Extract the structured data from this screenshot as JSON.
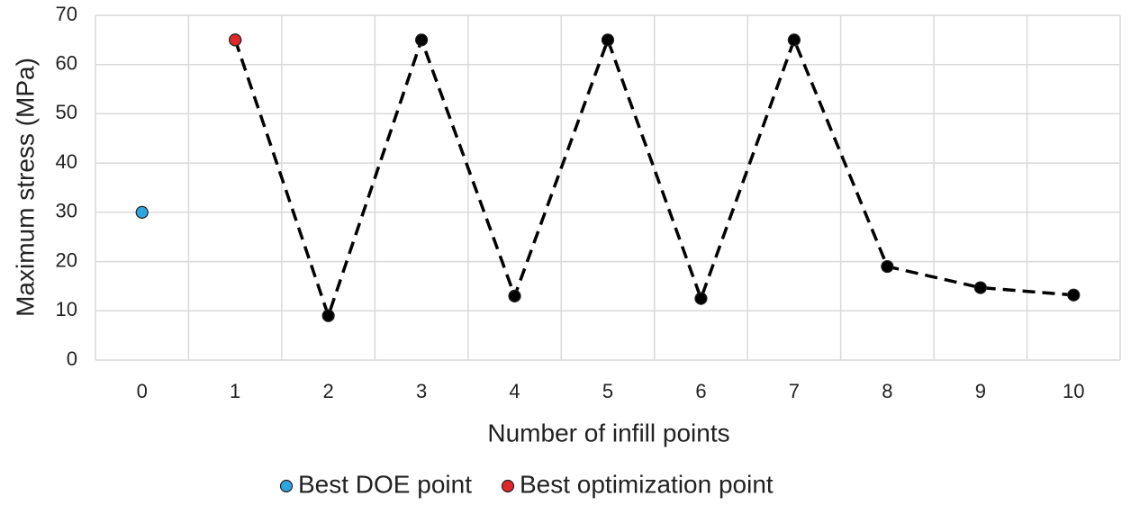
{
  "chart_data": {
    "type": "line",
    "x_label": "Number of infill points",
    "y_label": "Maximum stress (MPa)",
    "categories": [
      "0",
      "1",
      "2",
      "3",
      "4",
      "5",
      "6",
      "7",
      "8",
      "9",
      "10"
    ],
    "ylim": [
      0,
      70
    ],
    "yticks": [
      0,
      10,
      20,
      30,
      40,
      50,
      60,
      70
    ],
    "grid": true,
    "series": [
      {
        "name": "Best DOE point",
        "color": "#2ea7e0",
        "values": [
          30,
          null,
          null,
          null,
          null,
          null,
          null,
          null,
          null,
          null,
          null
        ]
      },
      {
        "name": "Best optimization point",
        "color": "#e0282a",
        "values": [
          null,
          65,
          null,
          null,
          null,
          null,
          null,
          null,
          null,
          null,
          null
        ]
      },
      {
        "color": "#000000",
        "dashed": true,
        "values": [
          null,
          65,
          9,
          65,
          13,
          65,
          12.5,
          65,
          19,
          14.7,
          13.2
        ]
      }
    ]
  }
}
